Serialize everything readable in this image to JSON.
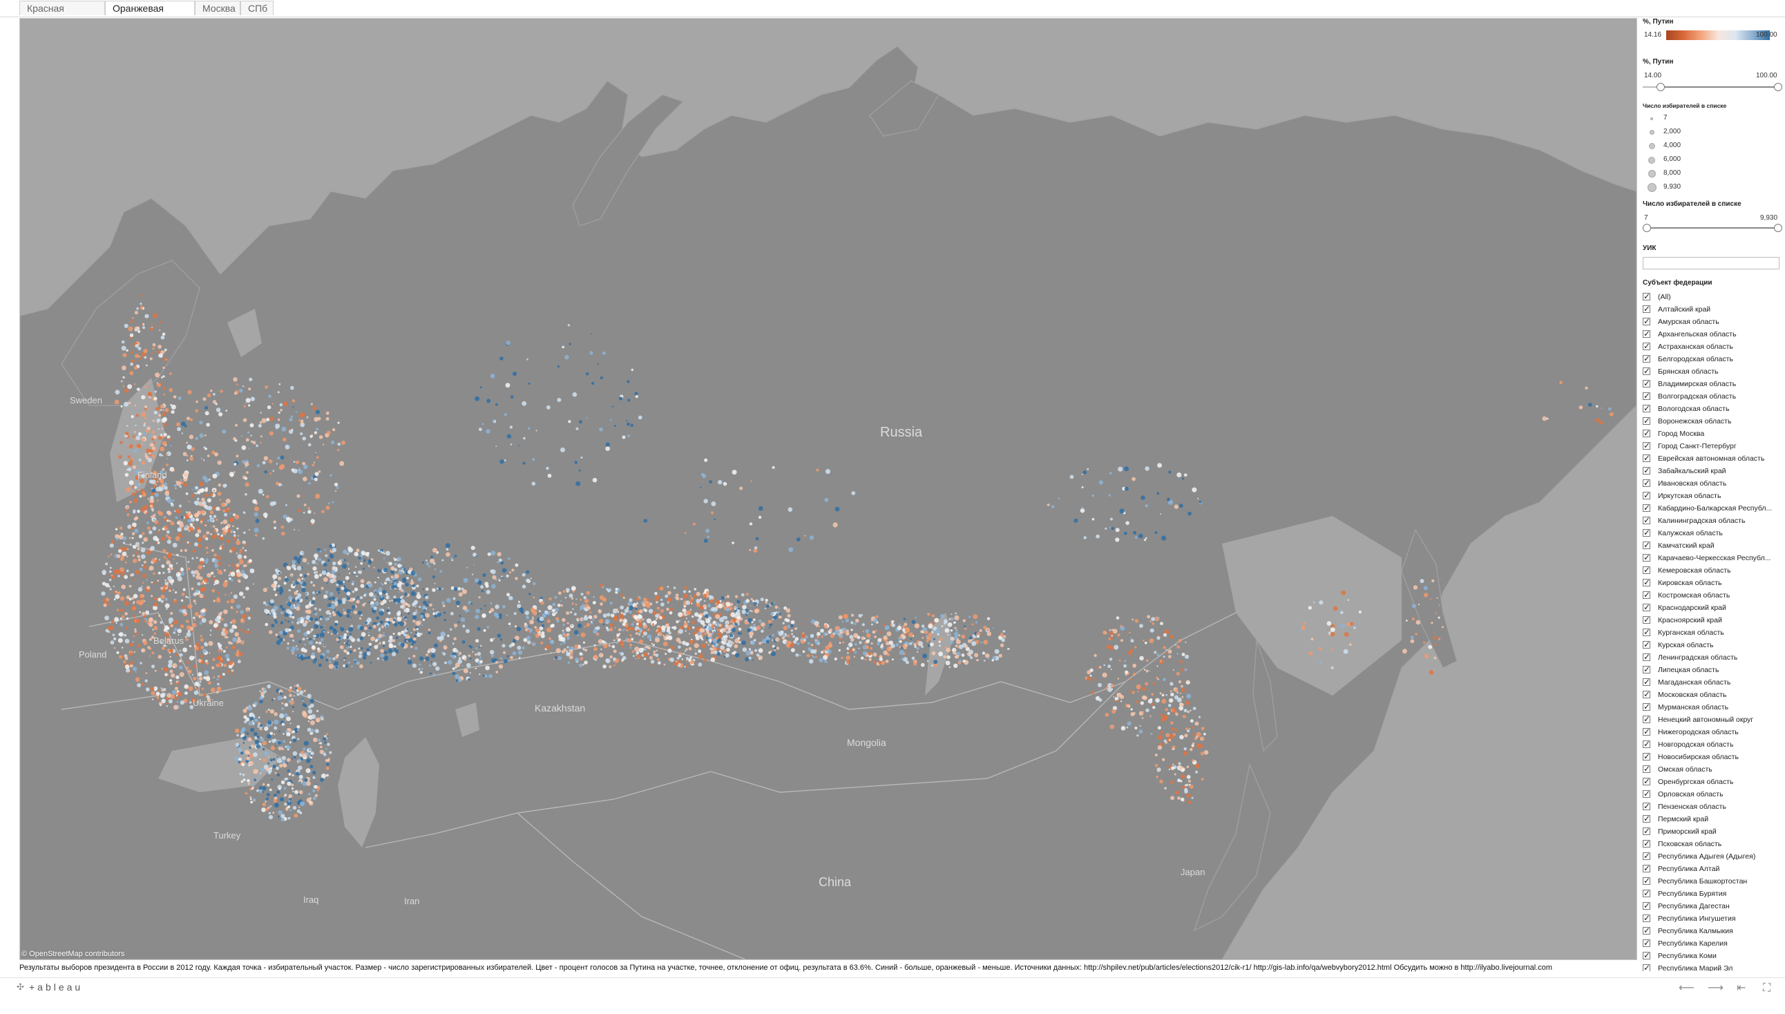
{
  "tabs": [
    {
      "label": "Красная плесень",
      "active": false
    },
    {
      "label": "Оранжевая зараза",
      "active": true
    },
    {
      "label": "Москва",
      "active": false
    },
    {
      "label": "СПб",
      "active": false
    }
  ],
  "map": {
    "attribution": "© OpenStreetMap contributors",
    "labels": {
      "russia": "Russia",
      "sweden": "Sweden",
      "finland": "Finland",
      "belarus": "Belarus",
      "poland": "Poland",
      "ukraine": "Ukraine",
      "kazakhstan": "Kazakhstan",
      "mongolia": "Mongolia",
      "china": "China",
      "turkey": "Turkey",
      "iraq": "Iraq",
      "iran": "Iran",
      "japan": "Japan"
    },
    "colors": {
      "background": "#a6a6a6",
      "land": "#8a8a8a",
      "orange": "#e0733f",
      "blue": "#2f6ea3",
      "white": "#f4f4f4"
    }
  },
  "sidebar": {
    "color_legend": {
      "title": "%, Путин",
      "min": "14.16",
      "max": "100.00"
    },
    "pct_filter": {
      "title": "%, Путин",
      "min": "14.00",
      "max": "100.00"
    },
    "size_legend": {
      "title": "Число избирателей в списке",
      "items": [
        "7",
        "2,000",
        "4,000",
        "6,000",
        "8,000",
        "9,930"
      ]
    },
    "size_filter": {
      "title": "Число избирателей в списке",
      "min": "7",
      "max": "9,930"
    },
    "uik": {
      "title": "УИК",
      "value": ""
    },
    "regions": {
      "title": "Субъект федерации",
      "items": [
        "(All)",
        "Алтайский край",
        "Амурская область",
        "Архангельская область",
        "Астраханская область",
        "Белгородская область",
        "Брянская область",
        "Владимирская область",
        "Волгоградская область",
        "Вологодская область",
        "Воронежская область",
        "Город Москва",
        "Город Санкт-Петербург",
        "Еврейская автономная область",
        "Забайкальский край",
        "Ивановская область",
        "Иркутская область",
        "Кабардино-Балкарская Республ...",
        "Калининградская область",
        "Калужская область",
        "Камчатский край",
        "Карачаево-Черкесская Республ...",
        "Кемеровская область",
        "Кировская область",
        "Костромская область",
        "Краснодарский край",
        "Красноярский край",
        "Курганская область",
        "Курская область",
        "Ленинградская область",
        "Липецкая область",
        "Магаданская область",
        "Московская область",
        "Мурманская область",
        "Ненецкий автономный округ",
        "Нижегородская область",
        "Новгородская область",
        "Новосибирская область",
        "Омская область",
        "Оренбургская область",
        "Орловская область",
        "Пензенская область",
        "Пермский край",
        "Приморский край",
        "Псковская область",
        "Республика Адыгея (Адыгея)",
        "Республика Алтай",
        "Республика Башкортостан",
        "Республика Бурятия",
        "Республика Дагестан",
        "Республика Ингушетия",
        "Республика Калмыкия",
        "Республика Карелия",
        "Республика Коми",
        "Республика Марий Эл"
      ]
    }
  },
  "caption": "Результаты выборов президента в России в 2012 году. Каждая точка - избирательный участок. Размер - число зарегистрированных избирателей. Цвет - процент голосов за Путина на участке, точнее, отклонение от офиц. результата в 63.6%. Синий - больше, оранжевый - меньше. Источники данных:  http://shpilev.net/pub/articles/elections2012/cik-r1/   http://gis-lab.info/qa/webvybory2012.html  Обсудить можно в http://ilyabo.livejournal.com",
  "footer": {
    "logo": "+ableau",
    "icons": [
      "undo-icon",
      "redo-icon",
      "revert-icon",
      "fullscreen-icon"
    ]
  }
}
